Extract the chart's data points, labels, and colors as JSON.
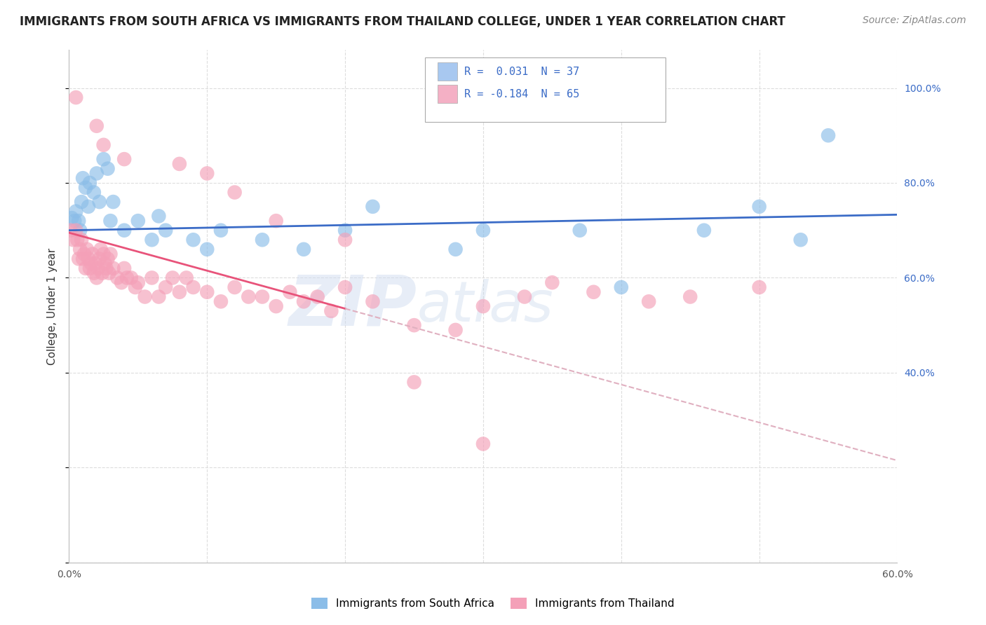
{
  "title": "IMMIGRANTS FROM SOUTH AFRICA VS IMMIGRANTS FROM THAILAND COLLEGE, UNDER 1 YEAR CORRELATION CHART",
  "source": "Source: ZipAtlas.com",
  "ylabel": "College, Under 1 year",
  "xlim": [
    0.0,
    0.6
  ],
  "ylim": [
    0.0,
    1.08
  ],
  "x_ticks": [
    0.0,
    0.1,
    0.2,
    0.3,
    0.4,
    0.5,
    0.6
  ],
  "x_tick_labels": [
    "0.0%",
    "",
    "",
    "",
    "",
    "",
    "60.0%"
  ],
  "y_ticks_right": [
    0.4,
    0.6,
    0.8,
    1.0
  ],
  "y_tick_labels_right": [
    "40.0%",
    "60.0%",
    "80.0%",
    "100.0%"
  ],
  "legend_r1": "R =  0.031  N = 37",
  "legend_r2": "R = -0.184  N = 65",
  "color_blue": "#8BBDE8",
  "color_pink": "#F4A0B8",
  "color_blue_line": "#3B6CC7",
  "color_pink_line": "#E8537A",
  "color_dashed": "#E0B0C0",
  "color_grid": "#DDDDDD",
  "south_africa_x": [
    0.002,
    0.004,
    0.005,
    0.007,
    0.008,
    0.009,
    0.01,
    0.012,
    0.014,
    0.015,
    0.018,
    0.02,
    0.022,
    0.025,
    0.028,
    0.03,
    0.032,
    0.04,
    0.05,
    0.06,
    0.065,
    0.07,
    0.09,
    0.1,
    0.11,
    0.14,
    0.17,
    0.2,
    0.22,
    0.28,
    0.3,
    0.37,
    0.4,
    0.46,
    0.5,
    0.53,
    0.55
  ],
  "south_africa_y": [
    0.726,
    0.72,
    0.74,
    0.72,
    0.7,
    0.76,
    0.81,
    0.79,
    0.75,
    0.8,
    0.78,
    0.82,
    0.76,
    0.85,
    0.83,
    0.72,
    0.76,
    0.7,
    0.72,
    0.68,
    0.73,
    0.7,
    0.68,
    0.66,
    0.7,
    0.68,
    0.66,
    0.7,
    0.75,
    0.66,
    0.7,
    0.7,
    0.58,
    0.7,
    0.75,
    0.68,
    0.9
  ],
  "thailand_x": [
    0.001,
    0.003,
    0.005,
    0.006,
    0.007,
    0.008,
    0.009,
    0.01,
    0.011,
    0.012,
    0.013,
    0.014,
    0.015,
    0.016,
    0.017,
    0.018,
    0.019,
    0.02,
    0.021,
    0.022,
    0.023,
    0.024,
    0.025,
    0.026,
    0.027,
    0.028,
    0.029,
    0.03,
    0.032,
    0.035,
    0.038,
    0.04,
    0.042,
    0.045,
    0.048,
    0.05,
    0.055,
    0.06,
    0.065,
    0.07,
    0.075,
    0.08,
    0.085,
    0.09,
    0.1,
    0.11,
    0.12,
    0.13,
    0.14,
    0.15,
    0.16,
    0.17,
    0.18,
    0.19,
    0.2,
    0.22,
    0.25,
    0.28,
    0.3,
    0.33,
    0.35,
    0.38,
    0.42,
    0.45,
    0.5
  ],
  "thailand_y": [
    0.7,
    0.68,
    0.7,
    0.68,
    0.64,
    0.66,
    0.68,
    0.64,
    0.65,
    0.62,
    0.66,
    0.64,
    0.62,
    0.63,
    0.65,
    0.61,
    0.63,
    0.6,
    0.62,
    0.64,
    0.66,
    0.61,
    0.65,
    0.63,
    0.62,
    0.64,
    0.61,
    0.65,
    0.62,
    0.6,
    0.59,
    0.62,
    0.6,
    0.6,
    0.58,
    0.59,
    0.56,
    0.6,
    0.56,
    0.58,
    0.6,
    0.57,
    0.6,
    0.58,
    0.57,
    0.55,
    0.58,
    0.56,
    0.56,
    0.54,
    0.57,
    0.55,
    0.56,
    0.53,
    0.58,
    0.55,
    0.5,
    0.49,
    0.54,
    0.56,
    0.59,
    0.57,
    0.55,
    0.56,
    0.58
  ],
  "thailand_extra_x": [
    0.005,
    0.02,
    0.025,
    0.04,
    0.08,
    0.1,
    0.12,
    0.15,
    0.2,
    0.25,
    0.3
  ],
  "thailand_extra_y": [
    0.98,
    0.92,
    0.88,
    0.85,
    0.84,
    0.82,
    0.78,
    0.72,
    0.68,
    0.38,
    0.25
  ],
  "watermark_zip": "ZIP",
  "watermark_atlas": "atlas",
  "legend_rect_blue": "#A8C8F0",
  "legend_rect_pink": "#F4B0C5",
  "title_fontsize": 12,
  "source_fontsize": 10,
  "axis_label_fontsize": 11,
  "tick_fontsize": 10,
  "blue_line_intercept": 0.7,
  "blue_line_slope": 0.055,
  "pink_line_intercept": 0.695,
  "pink_line_slope": -0.8
}
